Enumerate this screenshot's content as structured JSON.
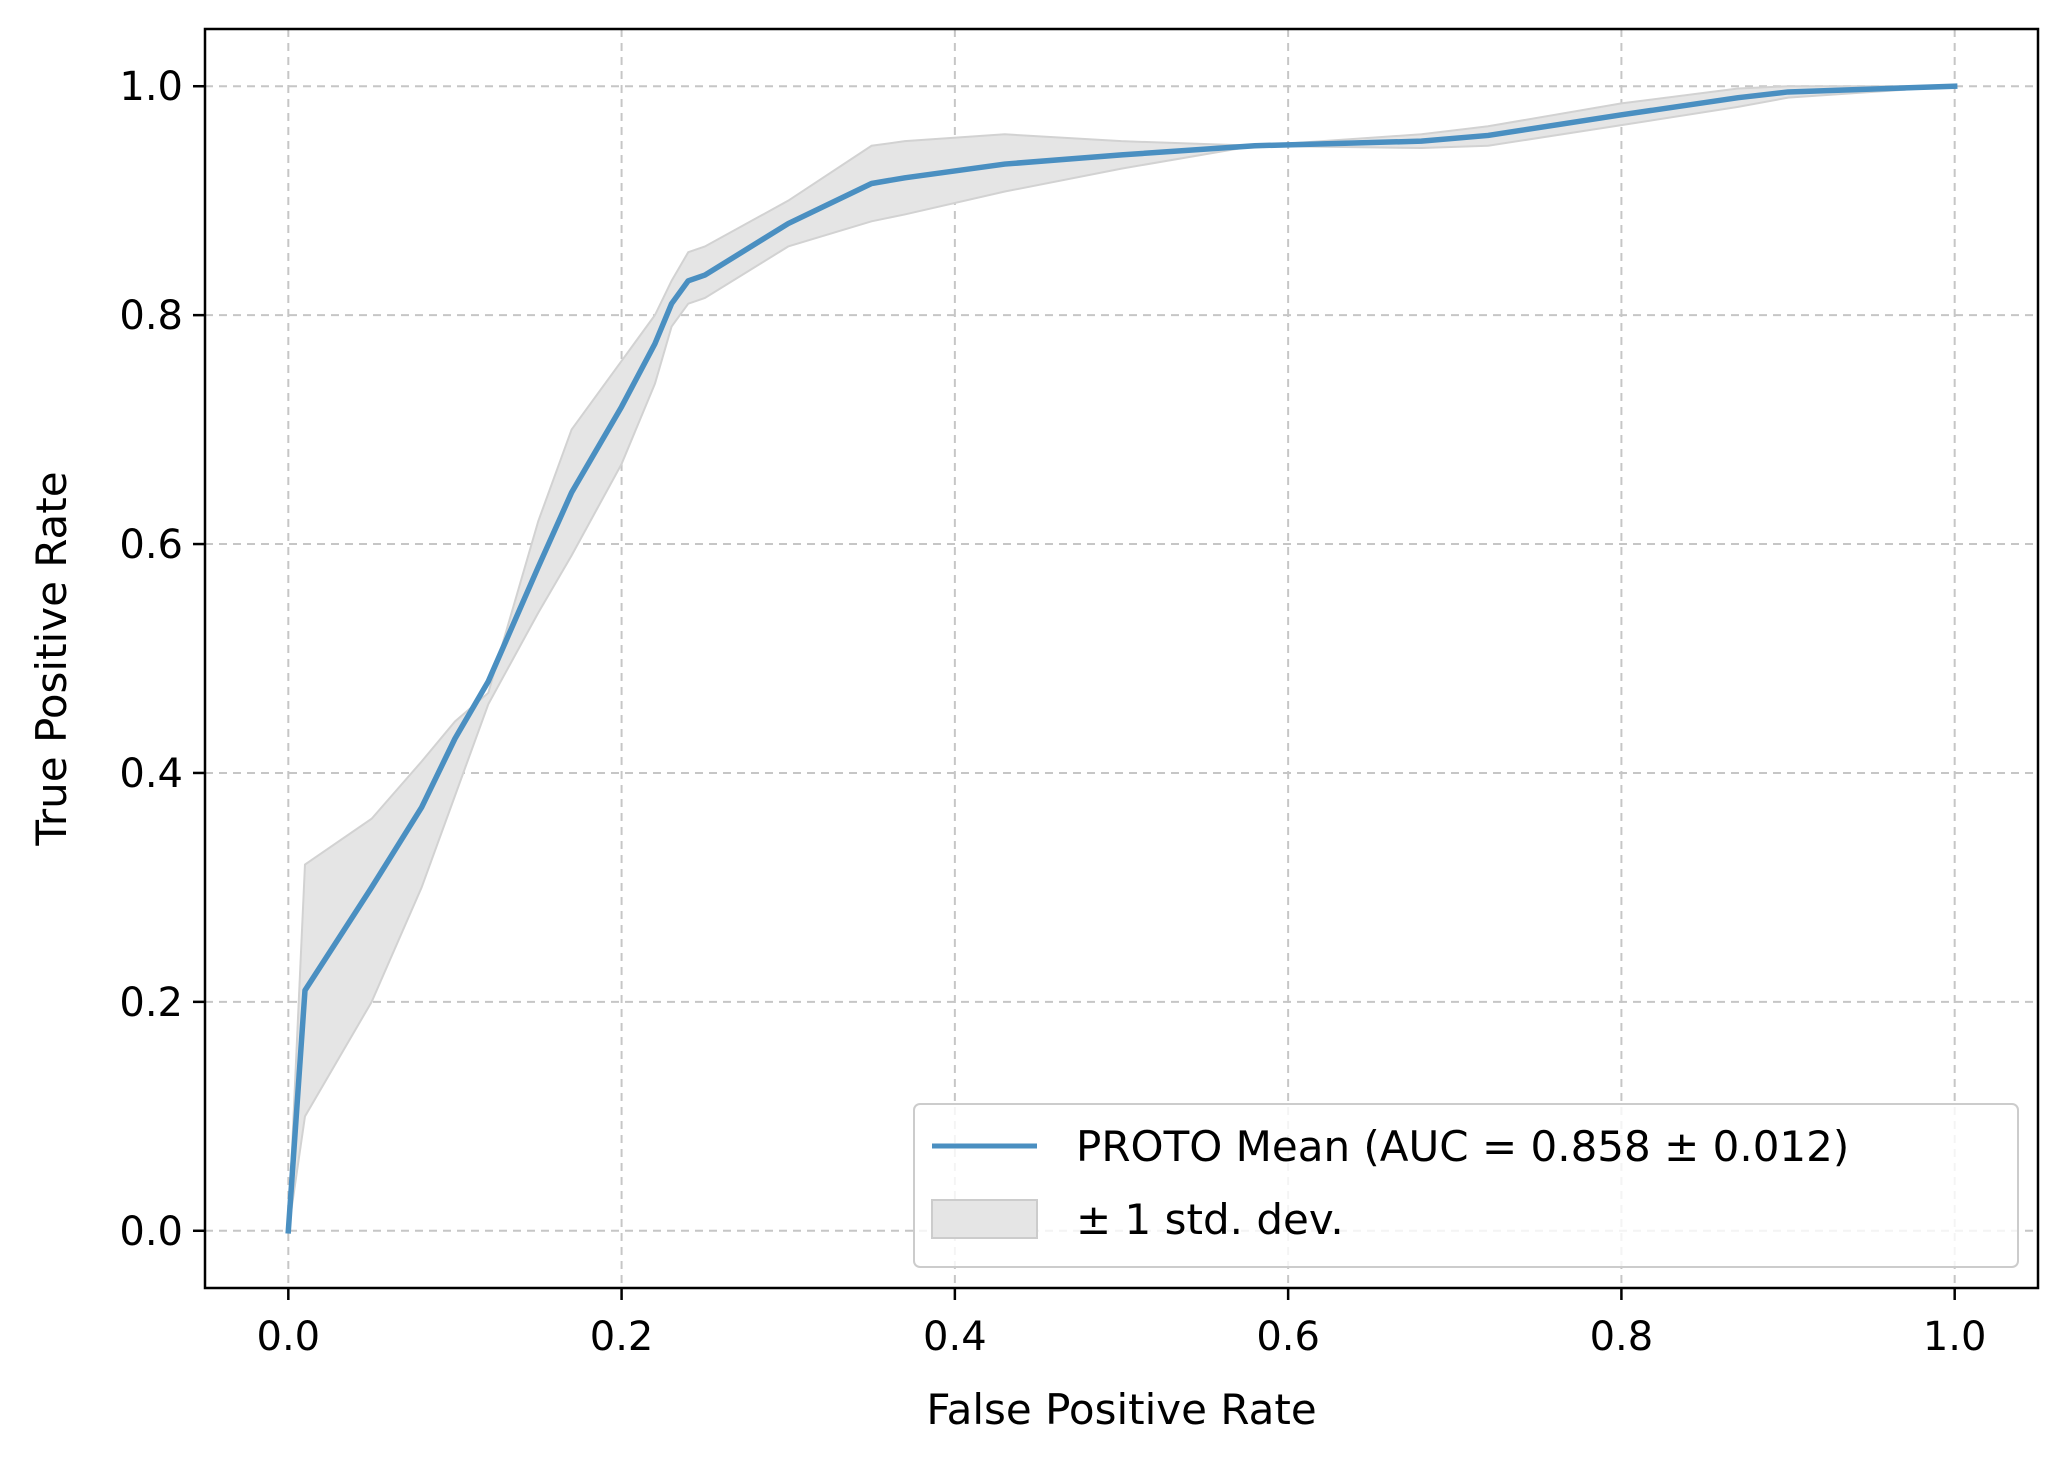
{
  "chart_data": {
    "type": "line",
    "title": "",
    "xlabel": "False Positive Rate",
    "ylabel": "True Positive Rate",
    "xlim": [
      -0.05,
      1.05
    ],
    "ylim": [
      -0.05,
      1.05
    ],
    "xticks": [
      0.0,
      0.2,
      0.4,
      0.6,
      0.8,
      1.0
    ],
    "yticks": [
      0.0,
      0.2,
      0.4,
      0.6,
      0.8,
      1.0
    ],
    "xtick_labels": [
      "0.0",
      "0.2",
      "0.4",
      "0.6",
      "0.8",
      "1.0"
    ],
    "ytick_labels": [
      "0.0",
      "0.2",
      "0.4",
      "0.6",
      "0.8",
      "1.0"
    ],
    "grid": true,
    "legend_position": "lower-right",
    "series": [
      {
        "name": "PROTO Mean (AUC = 0.858 ± 0.012)",
        "color": "#4a8fc1",
        "x": [
          0.0,
          0.01,
          0.05,
          0.08,
          0.1,
          0.12,
          0.15,
          0.17,
          0.2,
          0.22,
          0.23,
          0.24,
          0.25,
          0.3,
          0.35,
          0.37,
          0.43,
          0.5,
          0.58,
          0.68,
          0.72,
          0.8,
          0.87,
          0.9,
          1.0
        ],
        "y": [
          0.0,
          0.21,
          0.3,
          0.37,
          0.43,
          0.48,
          0.58,
          0.645,
          0.72,
          0.775,
          0.81,
          0.83,
          0.835,
          0.88,
          0.915,
          0.92,
          0.932,
          0.94,
          0.948,
          0.952,
          0.957,
          0.975,
          0.99,
          0.995,
          1.0
        ]
      }
    ],
    "band": {
      "name": "± 1 std. dev.",
      "color": "#e5e5e5",
      "x": [
        0.0,
        0.01,
        0.05,
        0.08,
        0.1,
        0.12,
        0.15,
        0.17,
        0.2,
        0.22,
        0.23,
        0.24,
        0.25,
        0.3,
        0.35,
        0.37,
        0.43,
        0.5,
        0.58,
        0.68,
        0.72,
        0.8,
        0.87,
        0.9,
        1.0
      ],
      "upper": [
        0.0,
        0.32,
        0.36,
        0.41,
        0.445,
        0.47,
        0.62,
        0.7,
        0.76,
        0.8,
        0.83,
        0.855,
        0.86,
        0.9,
        0.948,
        0.952,
        0.958,
        0.952,
        0.948,
        0.958,
        0.965,
        0.985,
        0.998,
        1.0,
        1.0
      ],
      "lower": [
        0.0,
        0.1,
        0.2,
        0.3,
        0.38,
        0.46,
        0.54,
        0.59,
        0.67,
        0.74,
        0.79,
        0.81,
        0.815,
        0.86,
        0.882,
        0.888,
        0.908,
        0.928,
        0.948,
        0.946,
        0.948,
        0.966,
        0.982,
        0.99,
        1.0
      ]
    }
  }
}
